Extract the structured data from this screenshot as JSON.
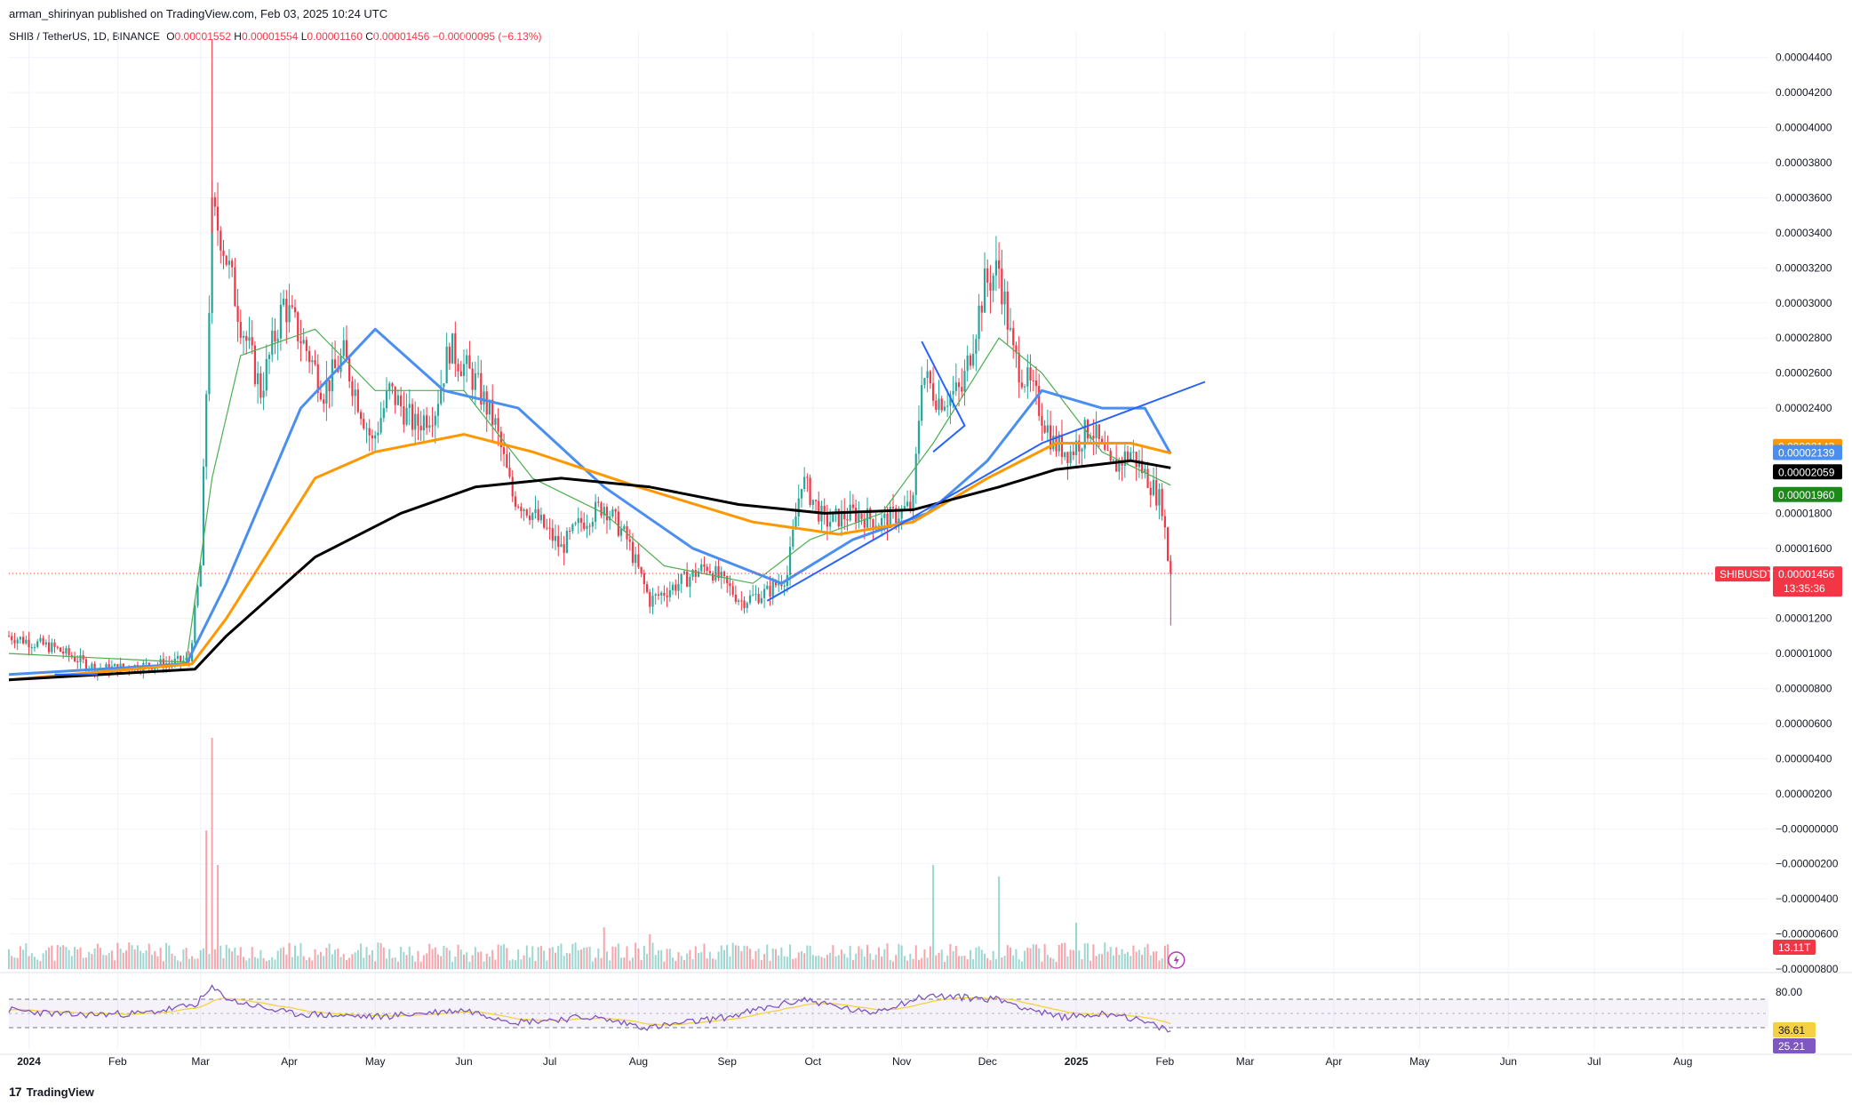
{
  "publisher_line": "arman_shirinyan published on TradingView.com, Feb 03, 2025 10:24 UTC",
  "legend": {
    "symbol": "SHIB / TetherUS, 1D, BINANCE",
    "open_label": "O",
    "open": "0.00001552",
    "high_label": "H",
    "high": "0.00001554",
    "low_label": "L",
    "low": "0.00001160",
    "close_label": "C",
    "close": "0.00001456",
    "change": "−0.00000095 (−6.13%)"
  },
  "branding": {
    "logo": "17",
    "name": "TradingView"
  },
  "colors": {
    "up": "#26a69a",
    "down": "#f23645",
    "ma_short": "#4caf50",
    "ma_blue": "#4a8ff0",
    "ma_orange": "#ff9800",
    "ma_black": "#000000",
    "trendline": "#2962ff",
    "rsi": "#7e57c2",
    "rsi_ma": "#f5d142"
  },
  "chart_data": [
    {
      "type": "candlestick",
      "title": "SHIB / TetherUS, 1D, BINANCE",
      "ylim": [
        -8e-06,
        4.5e-05
      ],
      "y_ticks": [
        "0.00004400",
        "0.00004200",
        "0.00004000",
        "0.00003800",
        "0.00003600",
        "0.00003400",
        "0.00003200",
        "0.00003000",
        "0.00002800",
        "0.00002600",
        "0.00002400",
        "0.00001800",
        "0.00001600",
        "0.00001200",
        "0.00001000",
        "0.00000800",
        "0.00000600",
        "0.00000400",
        "0.00000200",
        "−0.00000000",
        "−0.00000200",
        "−0.00000400",
        "−0.00000600",
        "−0.00000800"
      ],
      "y_tick_values": [
        4.4e-05,
        4.2e-05,
        4e-05,
        3.8e-05,
        3.6e-05,
        3.4e-05,
        3.2e-05,
        3e-05,
        2.8e-05,
        2.6e-05,
        2.4e-05,
        1.8e-05,
        1.6e-05,
        1.2e-05,
        1e-05,
        8e-06,
        6e-06,
        4e-06,
        2e-06,
        0.0,
        -2e-06,
        -4e-06,
        -6e-06,
        -8e-06
      ],
      "x_labels": [
        "2024",
        "Feb",
        "Mar",
        "Apr",
        "May",
        "Jun",
        "Jul",
        "Aug",
        "Sep",
        "Oct",
        "Nov",
        "Dec",
        "2025",
        "Feb",
        "Mar",
        "Apr",
        "May",
        "Jun",
        "Jul",
        "Aug"
      ],
      "x_label_dates": [
        "2024-01-01",
        "2024-02-01",
        "2024-03-01",
        "2024-04-01",
        "2024-05-01",
        "2024-06-01",
        "2024-07-01",
        "2024-08-01",
        "2024-09-01",
        "2024-10-01",
        "2024-11-01",
        "2024-12-01",
        "2025-01-01",
        "2025-02-01",
        "2025-03-01",
        "2025-04-01",
        "2025-05-01",
        "2025-06-01",
        "2025-07-01",
        "2025-08-01"
      ],
      "x_start_date": "2023-12-25",
      "price_path": [
        [
          "2023-12-25",
          1.1e-05
        ],
        [
          "2024-01-10",
          1.03e-05
        ],
        [
          "2024-01-25",
          9.1e-06
        ],
        [
          "2024-02-10",
          9.3e-06
        ],
        [
          "2024-02-26",
          9.6e-06
        ],
        [
          "2024-03-01",
          1.5e-05
        ],
        [
          "2024-03-05",
          3.5e-05
        ],
        [
          "2024-03-08",
          3.4e-05
        ],
        [
          "2024-03-15",
          2.9e-05
        ],
        [
          "2024-03-22",
          2.5e-05
        ],
        [
          "2024-03-30",
          3e-05
        ],
        [
          "2024-04-08",
          2.7e-05
        ],
        [
          "2024-04-13",
          2.5e-05
        ],
        [
          "2024-04-20",
          2.7e-05
        ],
        [
          "2024-04-30",
          2.2e-05
        ],
        [
          "2024-05-06",
          2.5e-05
        ],
        [
          "2024-05-15",
          2.3e-05
        ],
        [
          "2024-05-22",
          2.4e-05
        ],
        [
          "2024-05-27",
          2.75e-05
        ],
        [
          "2024-06-05",
          2.55e-05
        ],
        [
          "2024-06-12",
          2.3e-05
        ],
        [
          "2024-06-18",
          1.9e-05
        ],
        [
          "2024-06-25",
          1.8e-05
        ],
        [
          "2024-07-05",
          1.6e-05
        ],
        [
          "2024-07-12",
          1.75e-05
        ],
        [
          "2024-07-20",
          1.85e-05
        ],
        [
          "2024-07-28",
          1.65e-05
        ],
        [
          "2024-08-05",
          1.3e-05
        ],
        [
          "2024-08-15",
          1.4e-05
        ],
        [
          "2024-08-25",
          1.5e-05
        ],
        [
          "2024-09-06",
          1.3e-05
        ],
        [
          "2024-09-15",
          1.35e-05
        ],
        [
          "2024-09-22",
          1.45e-05
        ],
        [
          "2024-09-27",
          2e-05
        ],
        [
          "2024-10-05",
          1.75e-05
        ],
        [
          "2024-10-15",
          1.8e-05
        ],
        [
          "2024-10-25",
          1.75e-05
        ],
        [
          "2024-10-31",
          1.8e-05
        ],
        [
          "2024-11-05",
          1.85e-05
        ],
        [
          "2024-11-08",
          2.6e-05
        ],
        [
          "2024-11-14",
          2.45e-05
        ],
        [
          "2024-11-22",
          2.5e-05
        ],
        [
          "2024-11-30",
          3.1e-05
        ],
        [
          "2024-12-05",
          3.2e-05
        ],
        [
          "2024-12-10",
          2.7e-05
        ],
        [
          "2024-12-18",
          2.45e-05
        ],
        [
          "2024-12-24",
          2.2e-05
        ],
        [
          "2024-12-30",
          2.15e-05
        ],
        [
          "2025-01-06",
          2.3e-05
        ],
        [
          "2025-01-13",
          2.05e-05
        ],
        [
          "2025-01-20",
          2.15e-05
        ],
        [
          "2025-01-26",
          2e-05
        ],
        [
          "2025-01-31",
          1.85e-05
        ],
        [
          "2025-02-02",
          1.55e-05
        ],
        [
          "2025-02-03",
          1.456e-05
        ]
      ],
      "moving_averages": [
        {
          "color_key": "ma_short",
          "points": [
            [
              "2023-12-25",
              1e-05
            ],
            [
              "2024-02-25",
              9.5e-06
            ],
            [
              "2024-03-05",
              2e-05
            ],
            [
              "2024-03-15",
              2.7e-05
            ],
            [
              "2024-04-10",
              2.85e-05
            ],
            [
              "2024-05-01",
              2.5e-05
            ],
            [
              "2024-06-01",
              2.5e-05
            ],
            [
              "2024-06-25",
              2e-05
            ],
            [
              "2024-07-20",
              1.8e-05
            ],
            [
              "2024-08-10",
              1.5e-05
            ],
            [
              "2024-09-10",
              1.4e-05
            ],
            [
              "2024-09-30",
              1.65e-05
            ],
            [
              "2024-10-25",
              1.8e-05
            ],
            [
              "2024-11-12",
              2.2e-05
            ],
            [
              "2024-12-05",
              2.8e-05
            ],
            [
              "2024-12-20",
              2.6e-05
            ],
            [
              "2025-01-10",
              2.15e-05
            ],
            [
              "2025-02-03",
              1.96e-05
            ]
          ]
        },
        {
          "color_key": "ma_blue",
          "points": [
            [
              "2023-12-25",
              8.8e-06
            ],
            [
              "2024-02-25",
              9.4e-06
            ],
            [
              "2024-03-10",
              1.4e-05
            ],
            [
              "2024-04-05",
              2.4e-05
            ],
            [
              "2024-05-01",
              2.85e-05
            ],
            [
              "2024-05-25",
              2.5e-05
            ],
            [
              "2024-06-20",
              2.4e-05
            ],
            [
              "2024-07-20",
              1.95e-05
            ],
            [
              "2024-08-20",
              1.6e-05
            ],
            [
              "2024-09-20",
              1.4e-05
            ],
            [
              "2024-10-15",
              1.65e-05
            ],
            [
              "2024-11-10",
              1.8e-05
            ],
            [
              "2024-12-01",
              2.1e-05
            ],
            [
              "2024-12-20",
              2.5e-05
            ],
            [
              "2025-01-10",
              2.4e-05
            ],
            [
              "2025-01-25",
              2.4e-05
            ],
            [
              "2025-02-03",
              2.139e-05
            ]
          ]
        },
        {
          "color_key": "ma_orange",
          "points": [
            [
              "2023-12-25",
              8.5e-06
            ],
            [
              "2024-02-27",
              9.4e-06
            ],
            [
              "2024-03-10",
              1.2e-05
            ],
            [
              "2024-04-10",
              2e-05
            ],
            [
              "2024-05-01",
              2.15e-05
            ],
            [
              "2024-06-01",
              2.25e-05
            ],
            [
              "2024-06-25",
              2.15e-05
            ],
            [
              "2024-08-01",
              1.95e-05
            ],
            [
              "2024-09-10",
              1.75e-05
            ],
            [
              "2024-10-10",
              1.68e-05
            ],
            [
              "2024-11-05",
              1.75e-05
            ],
            [
              "2024-12-01",
              2e-05
            ],
            [
              "2024-12-25",
              2.2e-05
            ],
            [
              "2025-01-20",
              2.2e-05
            ],
            [
              "2025-02-03",
              2.143e-05
            ]
          ]
        },
        {
          "color_key": "ma_black",
          "points": [
            [
              "2023-12-25",
              8.5e-06
            ],
            [
              "2024-02-28",
              9.1e-06
            ],
            [
              "2024-03-10",
              1.1e-05
            ],
            [
              "2024-04-10",
              1.55e-05
            ],
            [
              "2024-05-10",
              1.8e-05
            ],
            [
              "2024-06-05",
              1.95e-05
            ],
            [
              "2024-07-05",
              2e-05
            ],
            [
              "2024-08-05",
              1.95e-05
            ],
            [
              "2024-09-05",
              1.85e-05
            ],
            [
              "2024-10-05",
              1.8e-05
            ],
            [
              "2024-11-05",
              1.82e-05
            ],
            [
              "2024-12-05",
              1.95e-05
            ],
            [
              "2024-12-25",
              2.05e-05
            ],
            [
              "2025-01-20",
              2.1e-05
            ],
            [
              "2025-02-03",
              2.059e-05
            ]
          ]
        }
      ],
      "trendlines": [
        [
          [
            "2024-01-10",
            8.8e-06
          ],
          [
            "2024-01-25",
            8.8e-06
          ]
        ],
        [
          [
            "2024-09-15",
            1.3e-05
          ],
          [
            "2024-12-20",
            2.2e-05
          ],
          [
            "2025-02-15",
            2.55e-05
          ]
        ],
        [
          [
            "2024-11-08",
            2.78e-05
          ],
          [
            "2024-11-23",
            2.3e-05
          ],
          [
            "2024-11-12",
            2.15e-05
          ]
        ]
      ],
      "price_tags": [
        {
          "text": "0.00002143",
          "value": 2.143e-05,
          "color_key": "ma_orange"
        },
        {
          "text": "0.00002139",
          "value": 2.139e-05,
          "color_key": "ma_blue"
        },
        {
          "text": "0.00002059",
          "value": 2.059e-05,
          "color_key": "ma_black"
        },
        {
          "text": "0.00001960",
          "value": 1.96e-05,
          "color_key": "ma_short"
        }
      ],
      "last_price": {
        "symbol": "SHIBUSDT",
        "price": "0.00001456",
        "value": 1.456e-05,
        "countdown": "13:35:36"
      },
      "volume": {
        "last_label": "13.11T",
        "spikes": [
          [
            "2024-03-05",
            1.0
          ],
          [
            "2024-03-03",
            0.6
          ],
          [
            "2024-03-07",
            0.45
          ],
          [
            "2024-11-12",
            0.45
          ],
          [
            "2024-12-05",
            0.4
          ],
          [
            "2025-01-01",
            0.2
          ],
          [
            "2024-07-20",
            0.18
          ],
          [
            "2024-08-05",
            0.15
          ]
        ]
      }
    },
    {
      "type": "line",
      "title": "RSI",
      "ylim": [
        0,
        100
      ],
      "y_ticks": [
        "80.00"
      ],
      "y_tick_values": [
        80
      ],
      "band": [
        30,
        70
      ],
      "last_values": {
        "rsi_ma": "36.61",
        "rsi": "25.21"
      },
      "rsi_path": [
        [
          "2023-12-25",
          55
        ],
        [
          "2024-01-15",
          48
        ],
        [
          "2024-02-10",
          50
        ],
        [
          "2024-02-28",
          62
        ],
        [
          "2024-03-05",
          85
        ],
        [
          "2024-03-12",
          68
        ],
        [
          "2024-04-01",
          50
        ],
        [
          "2024-05-01",
          45
        ],
        [
          "2024-06-01",
          55
        ],
        [
          "2024-06-20",
          38
        ],
        [
          "2024-07-15",
          45
        ],
        [
          "2024-08-05",
          30
        ],
        [
          "2024-09-01",
          45
        ],
        [
          "2024-09-28",
          70
        ],
        [
          "2024-10-20",
          50
        ],
        [
          "2024-11-10",
          75
        ],
        [
          "2024-12-05",
          70
        ],
        [
          "2024-12-25",
          45
        ],
        [
          "2025-01-15",
          50
        ],
        [
          "2025-02-03",
          25.21
        ]
      ]
    }
  ]
}
